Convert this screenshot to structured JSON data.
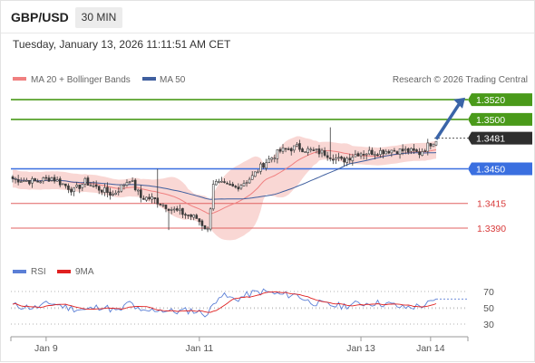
{
  "header": {
    "pair": "GBP/USD",
    "timeframe": "30 MIN",
    "datetime": "Tuesday, January 13, 2026 11:11:51 AM CET"
  },
  "legend": {
    "ma20_label": "MA 20 + Bollinger Bands",
    "ma50_label": "MA 50",
    "credit": "Research © 2026 Trading Central"
  },
  "rsi_legend": {
    "rsi_label": "RSI",
    "ma_label": "9MA"
  },
  "colors": {
    "resistance": "#4a9a1a",
    "pivot": "#3a6fe0",
    "support": "#e06060",
    "bollinger": "#f7c9c6",
    "ma20": "#f08080",
    "ma50": "#3f5f9f",
    "arrow": "#3a64a8",
    "rsi": "#5b7fd6",
    "rsi_ma": "#e02020",
    "candle": "#3a3a3a"
  },
  "chart_data": {
    "type": "candlestick",
    "y_range": [
      1.3368,
      1.3532
    ],
    "x_labels": [
      "Jan 9",
      "Jan 11",
      "Jan 13",
      "Jan 14"
    ],
    "levels": [
      {
        "kind": "resistance",
        "value": 1.352,
        "label": "1.3520"
      },
      {
        "kind": "resistance",
        "value": 1.35,
        "label": "1.3500"
      },
      {
        "kind": "current",
        "value": 1.3481,
        "label": "1.3481"
      },
      {
        "kind": "pivot",
        "value": 1.345,
        "label": "1.3450"
      },
      {
        "kind": "support",
        "value": 1.3415,
        "label": "1.3415"
      },
      {
        "kind": "support",
        "value": 1.339,
        "label": "1.3390"
      }
    ],
    "close_anchors": [
      [
        0,
        1.344
      ],
      [
        8,
        1.3437
      ],
      [
        14,
        1.3441
      ],
      [
        22,
        1.3428
      ],
      [
        26,
        1.3437
      ],
      [
        30,
        1.3431
      ],
      [
        36,
        1.3424
      ],
      [
        42,
        1.344
      ],
      [
        46,
        1.3421
      ],
      [
        50,
        1.342
      ],
      [
        58,
        1.3408
      ],
      [
        66,
        1.34
      ],
      [
        70,
        1.3388
      ],
      [
        72,
        1.3436
      ],
      [
        80,
        1.3431
      ],
      [
        86,
        1.3442
      ],
      [
        90,
        1.3455
      ],
      [
        96,
        1.3468
      ],
      [
        102,
        1.3472
      ],
      [
        106,
        1.3469
      ],
      [
        112,
        1.3466
      ],
      [
        118,
        1.3458
      ],
      [
        124,
        1.3466
      ],
      [
        130,
        1.3467
      ],
      [
        136,
        1.3469
      ],
      [
        142,
        1.3468
      ],
      [
        146,
        1.3466
      ],
      [
        150,
        1.3476
      ],
      [
        152,
        1.348
      ]
    ],
    "projection": {
      "from": 1.348,
      "to": 1.3522
    },
    "rsi": {
      "ticks": [
        70,
        50,
        30
      ],
      "range": [
        20,
        80
      ],
      "anchors": [
        [
          0,
          53
        ],
        [
          8,
          50
        ],
        [
          14,
          56
        ],
        [
          20,
          50
        ],
        [
          26,
          47
        ],
        [
          32,
          52
        ],
        [
          38,
          45
        ],
        [
          42,
          57
        ],
        [
          46,
          44
        ],
        [
          52,
          48
        ],
        [
          58,
          45
        ],
        [
          64,
          47
        ],
        [
          70,
          42
        ],
        [
          74,
          66
        ],
        [
          80,
          60
        ],
        [
          86,
          68
        ],
        [
          90,
          70
        ],
        [
          96,
          66
        ],
        [
          102,
          66
        ],
        [
          106,
          58
        ],
        [
          112,
          54
        ],
        [
          118,
          52
        ],
        [
          124,
          55
        ],
        [
          130,
          56
        ],
        [
          136,
          54
        ],
        [
          140,
          50
        ],
        [
          146,
          52
        ],
        [
          152,
          58
        ]
      ]
    }
  }
}
